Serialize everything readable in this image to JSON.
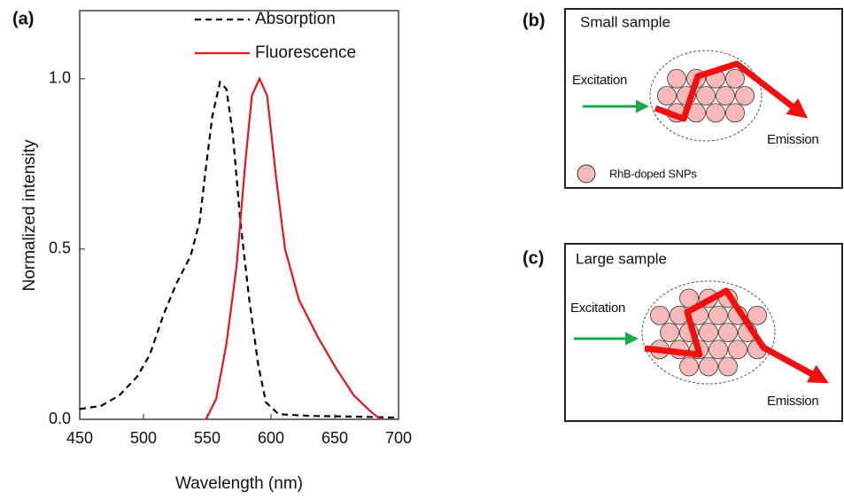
{
  "chart_data": {
    "type": "line",
    "label": "(a)",
    "x_label": "Wavelength (nm)",
    "y_label": "Normalized intensity",
    "xlim": [
      450,
      700
    ],
    "ylim": [
      0,
      1.2
    ],
    "xticks": [
      450,
      500,
      550,
      600,
      650,
      700
    ],
    "yticks": [
      {
        "value": 0,
        "label": "0.0"
      },
      {
        "value": 0.5,
        "label": "0.5"
      },
      {
        "value": 1,
        "label": "1.0"
      }
    ],
    "legend": "upper right",
    "series": [
      {
        "name": "Absorption",
        "color": "#000000",
        "style": "dashed",
        "x": [
          450,
          467,
          481,
          495,
          505,
          516,
          526,
          537,
          544,
          549,
          554,
          560,
          565,
          570,
          576,
          583,
          590,
          596,
          606,
          631,
          665,
          700
        ],
        "values": [
          0.03,
          0.04,
          0.07,
          0.125,
          0.19,
          0.31,
          0.4,
          0.48,
          0.58,
          0.74,
          0.89,
          0.99,
          0.97,
          0.84,
          0.58,
          0.35,
          0.16,
          0.05,
          0.015,
          0.01,
          0.008,
          0.005
        ]
      },
      {
        "name": "Fluorescence",
        "color": "#e8141c",
        "style": "solid",
        "x": [
          549,
          557,
          565,
          573,
          580,
          585,
          591,
          597,
          604,
          611,
          622,
          637,
          651,
          665,
          679,
          686
        ],
        "values": [
          0,
          0.06,
          0.22,
          0.45,
          0.76,
          0.95,
          1.0,
          0.95,
          0.71,
          0.5,
          0.35,
          0.24,
          0.15,
          0.07,
          0.02,
          0
        ]
      }
    ]
  },
  "diagrams": [
    {
      "label": "(b)",
      "title": "Small sample",
      "excitation": "Excitation",
      "emission": "Emission",
      "legend": "RhB-doped SNPs"
    },
    {
      "label": "(c)",
      "title": "Large sample",
      "excitation": "Excitation",
      "emission": "Emission"
    }
  ]
}
